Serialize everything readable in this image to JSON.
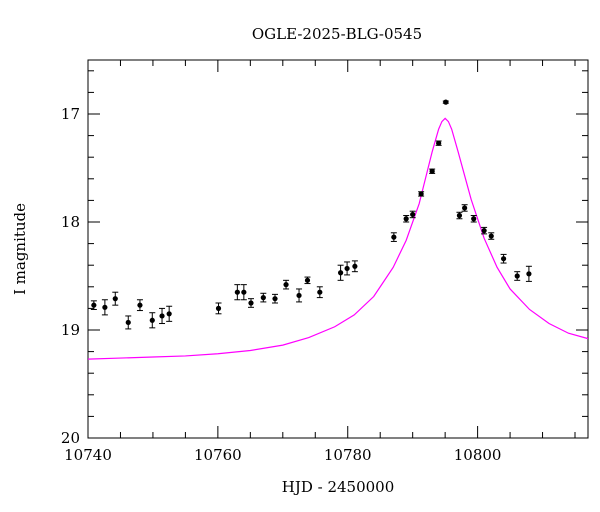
{
  "chart_data": {
    "type": "scatter",
    "title": "OGLE-2025-BLG-0545",
    "xlabel": "HJD - 2450000",
    "ylabel": "I magnitude",
    "xlim": [
      10740,
      10817
    ],
    "ylim": [
      20,
      16.5
    ],
    "y_inverted": true,
    "x_ticks": [
      10740,
      10760,
      10780,
      10800
    ],
    "y_ticks": [
      17,
      18,
      19,
      20
    ],
    "grid": false,
    "colors": {
      "points": "#000000",
      "model": "#ff00ff",
      "axes": "#000000"
    },
    "series": [
      {
        "kind": "points_with_errorbars",
        "x": [
          10740.9,
          10742.6,
          10744.2,
          10746.2,
          10748.0,
          10749.9,
          10751.4,
          10752.5,
          10760.1,
          10763.0,
          10764.0,
          10765.1,
          10767.0,
          10768.8,
          10770.5,
          10772.5,
          10773.8,
          10775.7,
          10778.9,
          10779.9,
          10781.1,
          10787.1,
          10789.0,
          10790.0,
          10791.3,
          10793.0,
          10794.0,
          10795.1,
          10797.2,
          10798.0,
          10799.4,
          10801.0,
          10802.1,
          10804.0,
          10806.1,
          10807.9
        ],
        "y": [
          18.77,
          18.79,
          18.71,
          18.93,
          18.77,
          18.91,
          18.87,
          18.85,
          18.8,
          18.65,
          18.65,
          18.75,
          18.7,
          18.71,
          18.58,
          18.68,
          18.54,
          18.65,
          18.47,
          18.43,
          18.41,
          18.14,
          17.97,
          17.93,
          17.74,
          17.53,
          17.27,
          16.89,
          17.94,
          17.87,
          17.97,
          18.08,
          18.13,
          18.34,
          18.5,
          18.48
        ],
        "yerr": [
          0.04,
          0.07,
          0.06,
          0.06,
          0.05,
          0.07,
          0.07,
          0.07,
          0.05,
          0.07,
          0.07,
          0.04,
          0.04,
          0.04,
          0.04,
          0.06,
          0.03,
          0.05,
          0.07,
          0.06,
          0.05,
          0.04,
          0.03,
          0.03,
          0.02,
          0.02,
          0.02,
          0.01,
          0.03,
          0.03,
          0.03,
          0.03,
          0.03,
          0.04,
          0.04,
          0.07
        ]
      },
      {
        "kind": "model_curve",
        "x": [
          10740,
          10745,
          10750,
          10755,
          10760,
          10765,
          10770,
          10774,
          10778,
          10781,
          10784,
          10787,
          10789,
          10791,
          10792,
          10793,
          10794,
          10794.5,
          10795,
          10795.5,
          10796,
          10797,
          10798,
          10799,
          10801,
          10803,
          10805,
          10808,
          10811,
          10814,
          10817
        ],
        "y": [
          19.27,
          19.26,
          19.25,
          19.24,
          19.22,
          19.19,
          19.14,
          19.07,
          18.97,
          18.86,
          18.69,
          18.42,
          18.17,
          17.83,
          17.59,
          17.35,
          17.14,
          17.07,
          17.04,
          17.07,
          17.14,
          17.35,
          17.57,
          17.79,
          18.15,
          18.42,
          18.62,
          18.81,
          18.94,
          19.03,
          19.08
        ]
      }
    ]
  }
}
